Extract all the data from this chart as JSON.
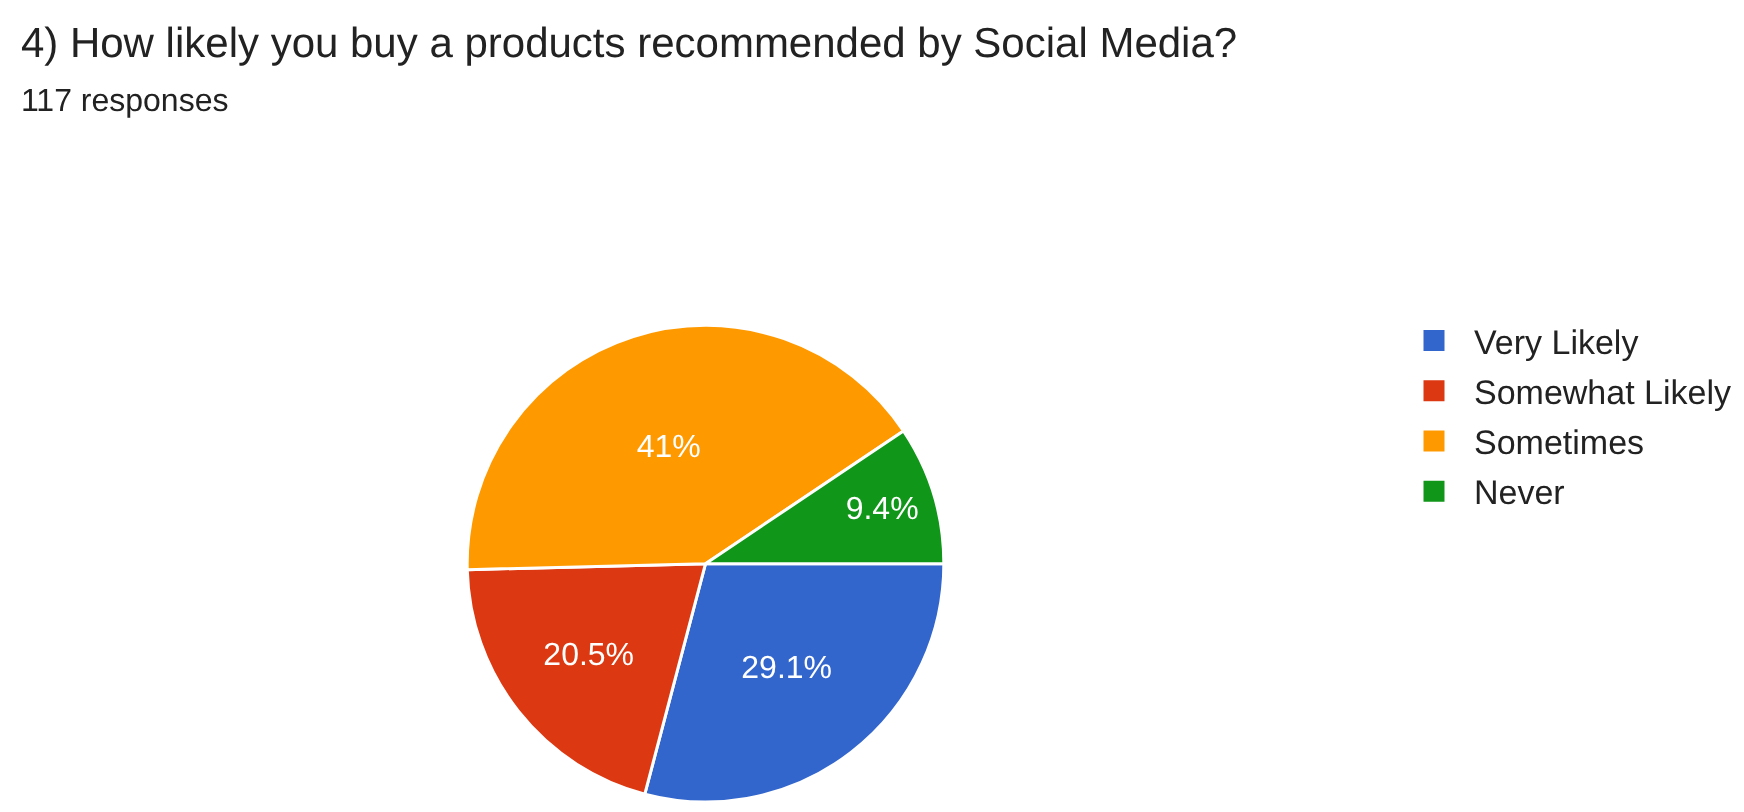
{
  "chart_data": {
    "type": "pie",
    "title": "4) How likely you buy a products recommended by Social Media?",
    "subtitle": "117 responses",
    "categories": [
      "Very Likely",
      "Somewhat Likely",
      "Sometimes",
      "Never"
    ],
    "values": [
      29.1,
      20.5,
      41,
      9.4
    ],
    "value_labels": [
      "29.1%",
      "20.5%",
      "41%",
      "9.4%"
    ],
    "colors": [
      "#3366cc",
      "#dc3912",
      "#ff9900",
      "#109618"
    ],
    "legend": "top right"
  }
}
